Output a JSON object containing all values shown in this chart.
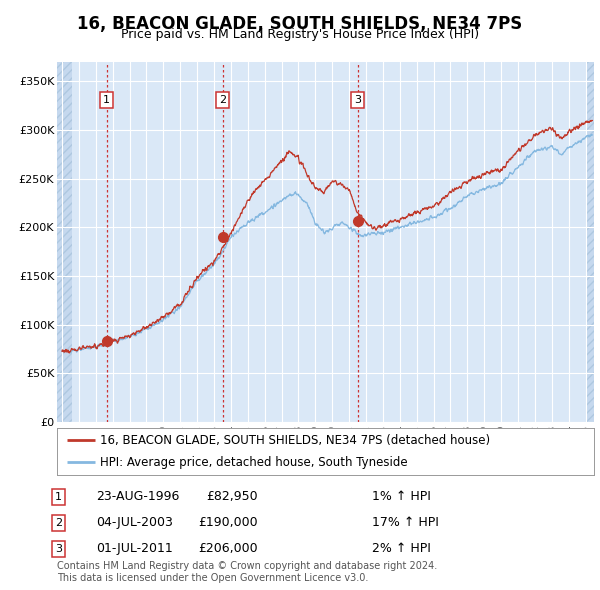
{
  "title": "16, BEACON GLADE, SOUTH SHIELDS, NE34 7PS",
  "subtitle": "Price paid vs. HM Land Registry's House Price Index (HPI)",
  "ylim": [
    0,
    370000
  ],
  "yticks": [
    0,
    50000,
    100000,
    150000,
    200000,
    250000,
    300000,
    350000
  ],
  "ytick_labels": [
    "£0",
    "£50K",
    "£100K",
    "£150K",
    "£200K",
    "£250K",
    "£300K",
    "£350K"
  ],
  "xlim_start": 1993.7,
  "xlim_end": 2025.5,
  "background_color": "#dae8f7",
  "grid_color": "#ffffff",
  "red_line_color": "#c0392b",
  "blue_line_color": "#85b8e0",
  "marker_color": "#c0392b",
  "transaction_labels": [
    "1",
    "2",
    "3"
  ],
  "transaction_dates": [
    1996.646,
    2003.503,
    2011.496
  ],
  "transaction_prices": [
    82950,
    190000,
    206000
  ],
  "transaction_display": [
    {
      "num": "1",
      "date": "23-AUG-1996",
      "price": "£82,950",
      "hpi": "1% ↑ HPI"
    },
    {
      "num": "2",
      "date": "04-JUL-2003",
      "price": "£190,000",
      "hpi": "17% ↑ HPI"
    },
    {
      "num": "3",
      "date": "01-JUL-2011",
      "price": "£206,000",
      "hpi": "2% ↑ HPI"
    }
  ],
  "legend_entries": [
    "16, BEACON GLADE, SOUTH SHIELDS, NE34 7PS (detached house)",
    "HPI: Average price, detached house, South Tyneside"
  ],
  "footer_text": "Contains HM Land Registry data © Crown copyright and database right 2024.\nThis data is licensed under the Open Government Licence v3.0.",
  "title_fontsize": 12,
  "subtitle_fontsize": 9,
  "tick_fontsize": 8,
  "legend_fontsize": 8.5,
  "table_fontsize": 9,
  "footer_fontsize": 7
}
